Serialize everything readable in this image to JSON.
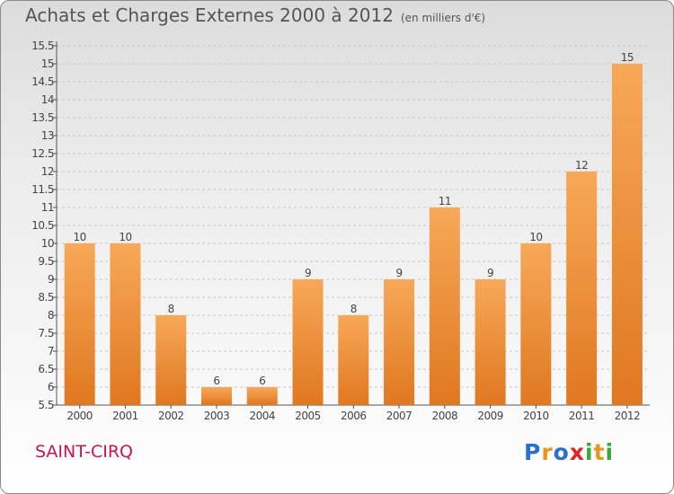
{
  "title": "Achats et Charges Externes 2000 à 2012",
  "unit": "(en milliers d'€)",
  "commune": "SAINT-CIRQ",
  "logo": {
    "text": "Proxiti",
    "letter_colors": [
      "#2a6fd1",
      "#e8961c",
      "#2a6fd1",
      "#d9252b",
      "#3aa935",
      "#e8961c",
      "#3aa935"
    ]
  },
  "colors": {
    "bar_light": "#f7a858",
    "bar_dark": "#e07820",
    "axis": "#555555",
    "grid": "#c8c8c8"
  },
  "chart_data": {
    "type": "bar",
    "categories": [
      "2000",
      "2001",
      "2002",
      "2003",
      "2004",
      "2005",
      "2006",
      "2007",
      "2008",
      "2009",
      "2010",
      "2011",
      "2012"
    ],
    "values": [
      10,
      10,
      8,
      6,
      6,
      9,
      8,
      9,
      11,
      9,
      10,
      12,
      15
    ],
    "value_labels": [
      "10",
      "10",
      "8",
      "6",
      "6",
      "9",
      "8",
      "9",
      "11",
      "9",
      "10",
      "12",
      "15"
    ],
    "ylim": [
      5.5,
      15.5
    ],
    "yticks": [
      "5.5",
      "6",
      "6.5",
      "7",
      "7.5",
      "8",
      "8.5",
      "9",
      "9.5",
      "10",
      "10.5",
      "11",
      "11.5",
      "12",
      "12.5",
      "13",
      "13.5",
      "14",
      "14.5",
      "15",
      "15.5"
    ],
    "grid": true
  }
}
